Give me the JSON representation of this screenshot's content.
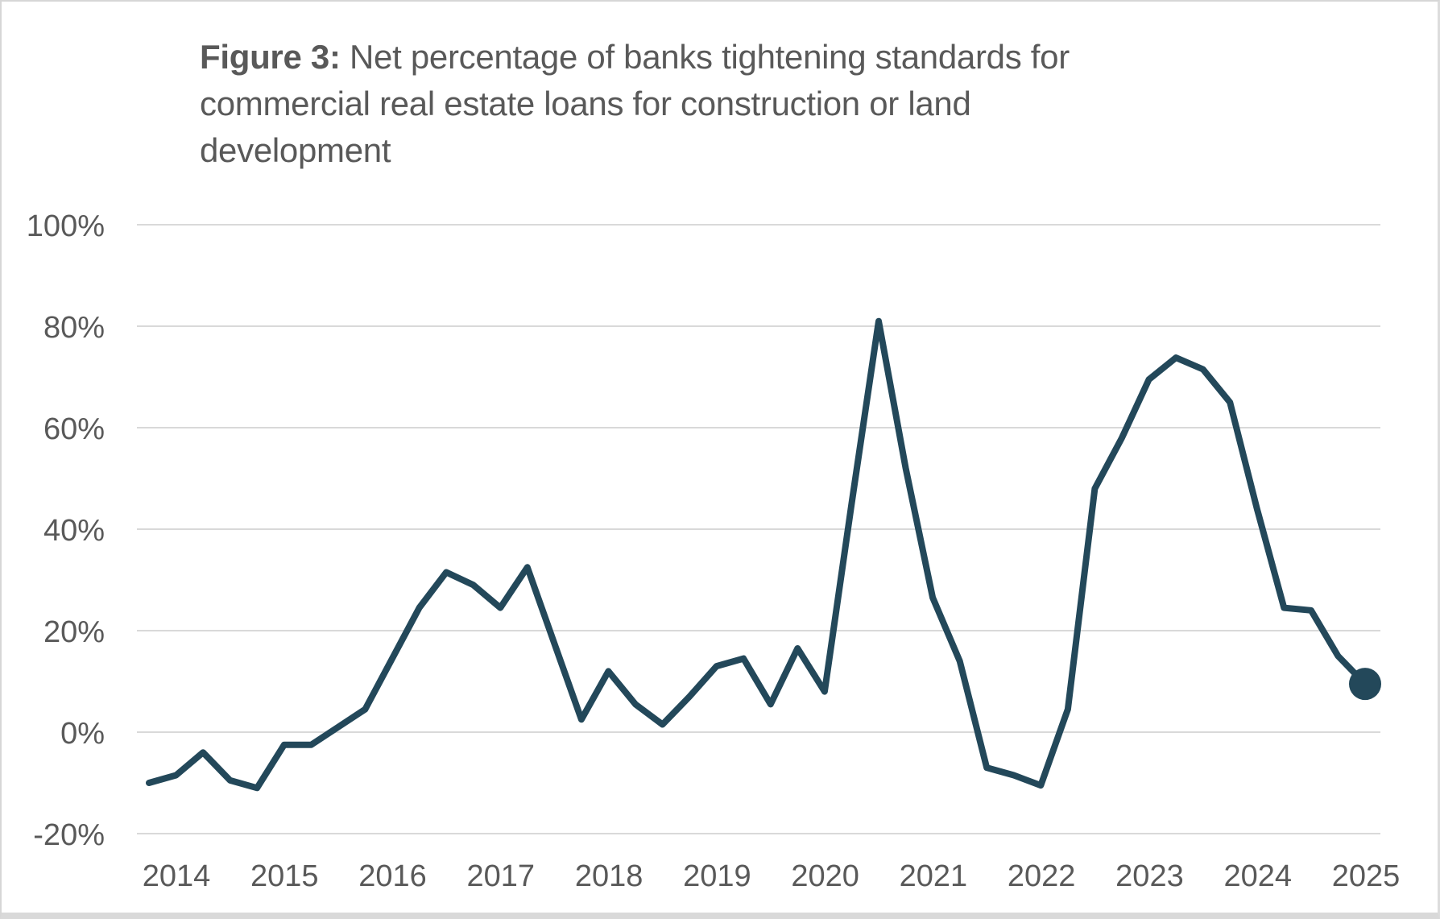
{
  "figure": {
    "label": "Figure 3:",
    "title_line1": " Net percentage of banks tightening standards for",
    "title_line2": "commercial real estate loans for construction or land",
    "title_line3": "development"
  },
  "chart_data": {
    "type": "line",
    "title": "Figure 3: Net percentage of banks tightening standards for commercial real estate loans for construction or land development",
    "x": [
      "2014 Q1",
      "2014 Q2",
      "2014 Q3",
      "2014 Q4",
      "2015 Q1",
      "2015 Q2",
      "2015 Q3",
      "2015 Q4",
      "2016 Q1",
      "2016 Q2",
      "2016 Q3",
      "2016 Q4",
      "2017 Q1",
      "2017 Q2",
      "2017 Q3",
      "2017 Q4",
      "2018 Q1",
      "2018 Q2",
      "2018 Q3",
      "2018 Q4",
      "2019 Q1",
      "2019 Q2",
      "2019 Q3",
      "2019 Q4",
      "2020 Q1",
      "2020 Q2",
      "2020 Q3",
      "2020 Q4",
      "2021 Q1",
      "2021 Q2",
      "2021 Q3",
      "2021 Q4",
      "2022 Q1",
      "2022 Q2",
      "2022 Q3",
      "2022 Q4",
      "2023 Q1",
      "2023 Q2",
      "2023 Q3",
      "2023 Q4",
      "2024 Q1",
      "2024 Q2",
      "2024 Q3",
      "2024 Q4",
      "2025 Q1",
      "2025 Q2"
    ],
    "values": [
      -10,
      -8.5,
      -4,
      -9.5,
      -11,
      -2.5,
      -2.5,
      1,
      4.5,
      14.5,
      24.5,
      31.5,
      29,
      24.5,
      32.5,
      17.5,
      2.5,
      12,
      5.5,
      1.5,
      7,
      13,
      14.5,
      5.5,
      16.5,
      8,
      45,
      81,
      52,
      26.5,
      14,
      -7,
      -8.5,
      -10.5,
      4.5,
      48,
      58,
      69.5,
      73.8,
      71.5,
      65,
      44,
      24.5,
      24,
      15,
      9.5
    ],
    "x_tick_labels": [
      "2014",
      "2015",
      "2016",
      "2017",
      "2018",
      "2019",
      "2020",
      "2021",
      "2022",
      "2023",
      "2024",
      "2025"
    ],
    "y_tick_labels": [
      "100%",
      "80%",
      "60%",
      "40%",
      "20%",
      "0%",
      "-20%"
    ],
    "y_tick_values": [
      100,
      80,
      60,
      40,
      20,
      0,
      -20
    ],
    "ylim": [
      -20,
      100
    ],
    "xlabel": "",
    "ylabel": "",
    "grid": "horizontal",
    "legend": "none",
    "line_color": "#23485A",
    "last_point_marker": "filled-circle",
    "gridline_color": "#D9D9D9",
    "label_color": "#595959"
  }
}
